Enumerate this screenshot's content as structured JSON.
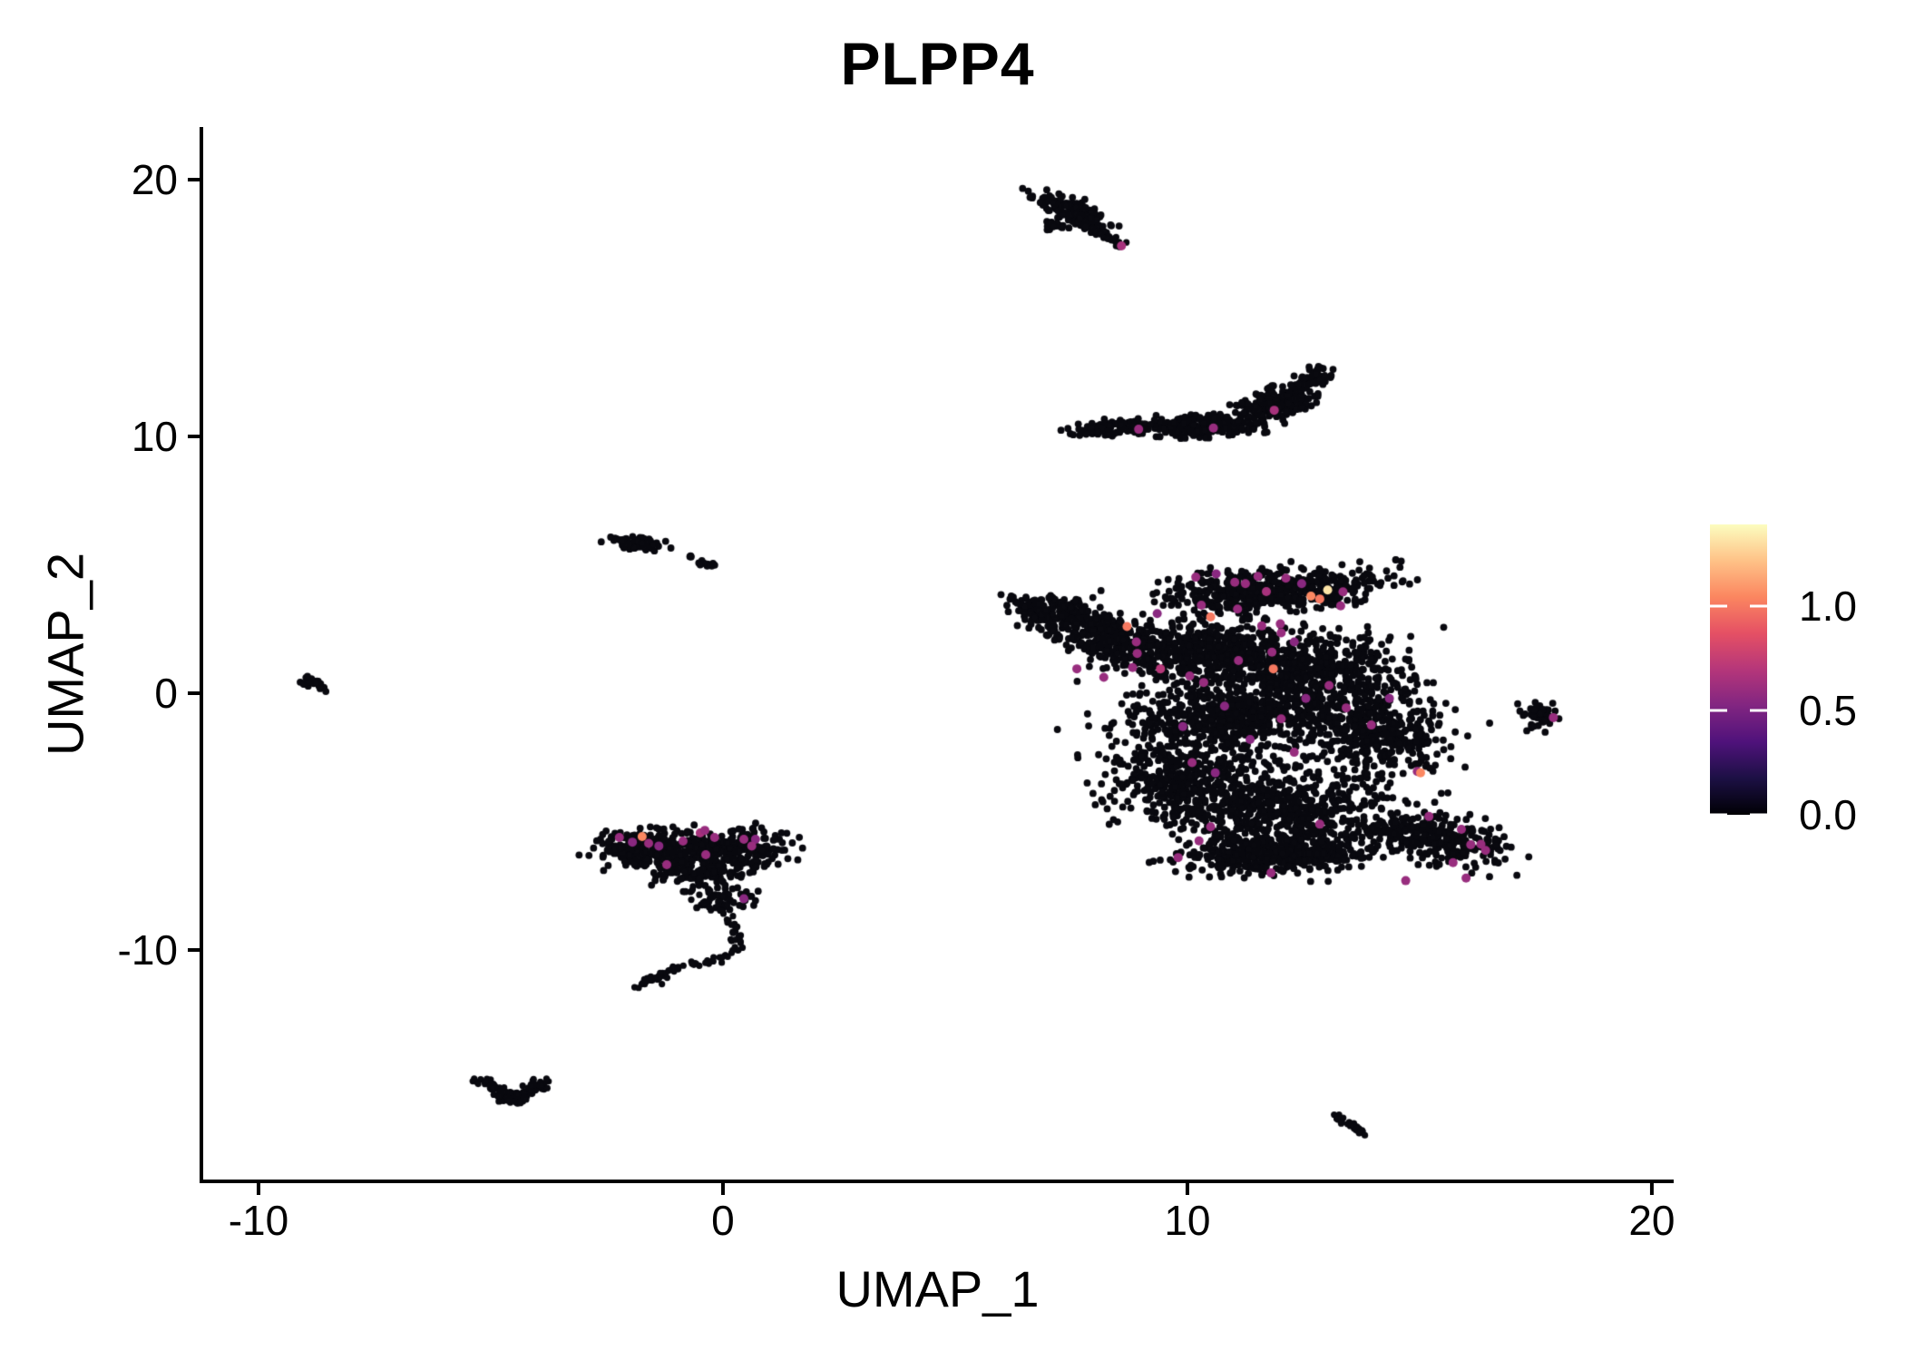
{
  "figure": {
    "title": "PLPP4",
    "background_color": "#ffffff"
  },
  "chart_data": {
    "type": "scatter",
    "title": "PLPP4",
    "xlabel": "UMAP_1",
    "ylabel": "UMAP_2",
    "xlim": [
      -11.23,
      20.47
    ],
    "ylim": [
      -19.01,
      22.05
    ],
    "x_ticks": [
      -10,
      0,
      10,
      20
    ],
    "y_ticks": [
      20,
      10,
      0,
      -10
    ],
    "grid": false,
    "point_color_zero": "#09090f",
    "axis_color": "#000000",
    "legend": {
      "position": "right",
      "tick_labels": [
        "1.0",
        "0.5",
        "0.0"
      ],
      "tick_values": [
        1.0,
        0.5,
        0.0
      ],
      "vmin": 0.0,
      "vmax": 1.391,
      "colormap": "magma",
      "gradient_stops": [
        "#000004",
        "#1c1044",
        "#4f127b",
        "#812581",
        "#b5367a",
        "#e55064",
        "#fb8660",
        "#fec287",
        "#fcfdbf"
      ]
    },
    "black_clusters": [
      {
        "name": "top-cluster",
        "blobs": [
          [
            7.35,
            19.0,
            0.75,
            0.33,
            -35,
            100
          ],
          [
            7.8,
            18.35,
            0.55,
            0.33,
            -40,
            70
          ],
          [
            7.1,
            18.25,
            0.3,
            0.2,
            0,
            18
          ]
        ],
        "strands": [
          {
            "pts": [
              [
                7.95,
                18.1
              ],
              [
                8.3,
                17.75
              ],
              [
                8.6,
                17.45
              ]
            ],
            "w": 0.13,
            "n": 26
          }
        ]
      },
      {
        "name": "banana-cluster",
        "blobs": [
          [
            8.55,
            10.33,
            0.95,
            0.28,
            4,
            140
          ],
          [
            10.35,
            10.42,
            1.05,
            0.42,
            4,
            230
          ],
          [
            11.95,
            11.3,
            0.85,
            0.5,
            38,
            190
          ],
          [
            12.7,
            12.25,
            0.4,
            0.3,
            40,
            70
          ]
        ],
        "strands": []
      },
      {
        "name": "left-small-cluster",
        "blobs": [
          [
            -1.85,
            5.85,
            0.58,
            0.22,
            -12,
            80
          ],
          [
            -0.68,
            5.3,
            0.07,
            0.06,
            0,
            4
          ],
          [
            -0.32,
            5.02,
            0.22,
            0.09,
            -20,
            14
          ]
        ],
        "strands": []
      },
      {
        "name": "far-left-cluster",
        "blobs": [
          [
            -8.82,
            0.42,
            0.3,
            0.17,
            -28,
            32
          ]
        ],
        "strands": []
      },
      {
        "name": "right-small-cluster",
        "blobs": [
          [
            17.6,
            -0.9,
            0.38,
            0.55,
            15,
            42
          ]
        ],
        "strands": []
      },
      {
        "name": "main-cluster",
        "blobs": [
          [
            7.2,
            3.1,
            1.1,
            0.6,
            -22,
            200
          ],
          [
            8.3,
            2.1,
            1.1,
            0.8,
            -30,
            260
          ],
          [
            11.8,
            4.0,
            2.3,
            0.75,
            7,
            520
          ],
          [
            10.5,
            1.6,
            1.9,
            1.15,
            0,
            520
          ],
          [
            12.9,
            0.9,
            1.6,
            1.3,
            0,
            430
          ],
          [
            11.0,
            -0.8,
            2.2,
            1.2,
            0,
            520
          ],
          [
            14.2,
            -1.5,
            1.3,
            1.6,
            0,
            330
          ],
          [
            9.9,
            -3.3,
            1.5,
            1.4,
            0,
            380
          ],
          [
            11.9,
            -4.6,
            2.1,
            1.4,
            0,
            560
          ],
          [
            11.9,
            -6.3,
            2.0,
            0.7,
            4,
            480
          ],
          [
            15.3,
            -5.6,
            1.6,
            0.85,
            -25,
            300
          ],
          [
            11.5,
            -1.5,
            3.4,
            3.0,
            0,
            260
          ]
        ],
        "strands": []
      },
      {
        "name": "lower-left-cluster",
        "blobs": [
          [
            -1.5,
            -6.1,
            1.25,
            0.75,
            0,
            250
          ],
          [
            0.3,
            -6.05,
            1.1,
            0.7,
            0,
            220
          ],
          [
            -0.5,
            -7.0,
            0.9,
            0.55,
            0,
            130
          ],
          [
            0.1,
            -8.0,
            0.7,
            0.5,
            0,
            40
          ]
        ],
        "strands": [
          {
            "pts": [
              [
                -0.75,
                -7.6
              ],
              [
                -0.1,
                -8.5
              ],
              [
                0.3,
                -9.2
              ],
              [
                0.25,
                -9.95
              ],
              [
                -0.25,
                -10.45
              ],
              [
                -0.95,
                -10.72
              ],
              [
                -1.45,
                -11.05
              ],
              [
                -1.76,
                -11.45
              ]
            ],
            "w": 0.16,
            "n": 95
          }
        ]
      },
      {
        "name": "bottom-left-cluster",
        "blobs": [
          [
            -4.55,
            -15.75,
            0.3,
            0.22,
            0,
            30
          ]
        ],
        "strands": [
          {
            "pts": [
              [
                -5.22,
                -15.1
              ],
              [
                -4.85,
                -15.42
              ],
              [
                -4.5,
                -15.85
              ],
              [
                -4.12,
                -15.42
              ],
              [
                -3.85,
                -15.12
              ]
            ],
            "w": 0.2,
            "n": 95
          }
        ]
      },
      {
        "name": "bottom-right-cluster",
        "blobs": [],
        "strands": [
          {
            "pts": [
              [
                13.22,
                -16.45
              ],
              [
                13.55,
                -16.8
              ],
              [
                13.82,
                -17.18
              ]
            ],
            "w": 0.12,
            "n": 30
          }
        ]
      }
    ],
    "expressing_points": [
      [
        8.58,
        17.42,
        0.65
      ],
      [
        8.95,
        10.28,
        0.6
      ],
      [
        10.56,
        10.33,
        0.6
      ],
      [
        11.87,
        11.02,
        0.65
      ],
      [
        17.88,
        -0.95,
        0.6
      ],
      [
        10.18,
        4.52,
        0.6
      ],
      [
        10.62,
        4.65,
        0.55
      ],
      [
        11.02,
        4.32,
        0.6
      ],
      [
        11.25,
        4.27,
        0.6
      ],
      [
        11.52,
        4.55,
        0.6
      ],
      [
        11.7,
        3.96,
        0.65
      ],
      [
        12.12,
        4.48,
        0.6
      ],
      [
        12.46,
        4.27,
        0.55
      ],
      [
        12.66,
        3.78,
        1.05
      ],
      [
        12.85,
        3.67,
        1.0
      ],
      [
        13.02,
        4.02,
        1.32
      ],
      [
        13.35,
        3.95,
        0.6
      ],
      [
        13.3,
        3.4,
        0.6
      ],
      [
        12.0,
        2.7,
        0.6
      ],
      [
        11.6,
        2.62,
        0.6
      ],
      [
        12.3,
        2.0,
        0.55
      ],
      [
        10.3,
        3.43,
        0.6
      ],
      [
        10.5,
        2.97,
        1.0
      ],
      [
        11.08,
        3.28,
        0.6
      ],
      [
        9.35,
        3.1,
        0.55
      ],
      [
        8.7,
        2.6,
        1.0
      ],
      [
        8.9,
        2.0,
        0.6
      ],
      [
        8.92,
        1.55,
        0.6
      ],
      [
        7.62,
        0.95,
        0.6
      ],
      [
        8.2,
        0.62,
        0.6
      ],
      [
        8.82,
        1.0,
        0.6
      ],
      [
        9.42,
        0.95,
        0.7
      ],
      [
        10.05,
        0.67,
        0.6
      ],
      [
        10.35,
        0.42,
        0.6
      ],
      [
        11.1,
        1.27,
        0.6
      ],
      [
        11.82,
        1.6,
        0.6
      ],
      [
        11.85,
        0.95,
        1.0
      ],
      [
        12.02,
        2.35,
        0.6
      ],
      [
        13.42,
        -0.57,
        0.6
      ],
      [
        12.3,
        -2.3,
        0.6
      ],
      [
        12.02,
        -1.0,
        0.6
      ],
      [
        13.96,
        -1.24,
        0.6
      ],
      [
        10.1,
        -2.7,
        0.6
      ],
      [
        10.6,
        -3.1,
        0.55
      ],
      [
        9.8,
        -6.4,
        0.6
      ],
      [
        10.25,
        -5.75,
        0.6
      ],
      [
        10.5,
        -5.2,
        0.6
      ],
      [
        11.8,
        -7.0,
        0.6
      ],
      [
        12.85,
        -5.1,
        0.6
      ],
      [
        14.7,
        -7.3,
        0.6
      ],
      [
        14.95,
        -3.05,
        0.6
      ],
      [
        15.02,
        -3.1,
        1.05
      ],
      [
        15.2,
        -4.8,
        0.6
      ],
      [
        15.9,
        -5.3,
        0.6
      ],
      [
        16.1,
        -5.9,
        0.6
      ],
      [
        16.32,
        -5.88,
        0.6
      ],
      [
        16.42,
        -6.12,
        0.6
      ],
      [
        15.72,
        -6.6,
        0.6
      ],
      [
        16.0,
        -7.2,
        0.6
      ],
      [
        14.35,
        -0.2,
        0.55
      ],
      [
        13.05,
        0.3,
        0.6
      ],
      [
        12.55,
        -0.2,
        0.55
      ],
      [
        11.35,
        -1.8,
        0.55
      ],
      [
        10.8,
        -0.5,
        0.55
      ],
      [
        9.9,
        -1.3,
        0.55
      ],
      [
        -2.23,
        -5.62,
        0.6
      ],
      [
        -1.95,
        -5.8,
        0.55
      ],
      [
        -1.74,
        -5.58,
        1.05
      ],
      [
        -1.6,
        -5.85,
        0.6
      ],
      [
        -1.38,
        -5.95,
        0.55
      ],
      [
        -0.86,
        -5.76,
        0.6
      ],
      [
        -0.49,
        -5.44,
        0.65
      ],
      [
        -0.39,
        -5.34,
        0.6
      ],
      [
        -0.18,
        -5.62,
        0.6
      ],
      [
        0.45,
        -5.69,
        0.6
      ],
      [
        0.7,
        -5.69,
        0.55
      ],
      [
        -1.21,
        -6.68,
        0.6
      ],
      [
        -0.37,
        -6.29,
        0.6
      ],
      [
        0.45,
        -8.0,
        0.55
      ],
      [
        0.62,
        -5.95,
        0.6
      ]
    ]
  }
}
